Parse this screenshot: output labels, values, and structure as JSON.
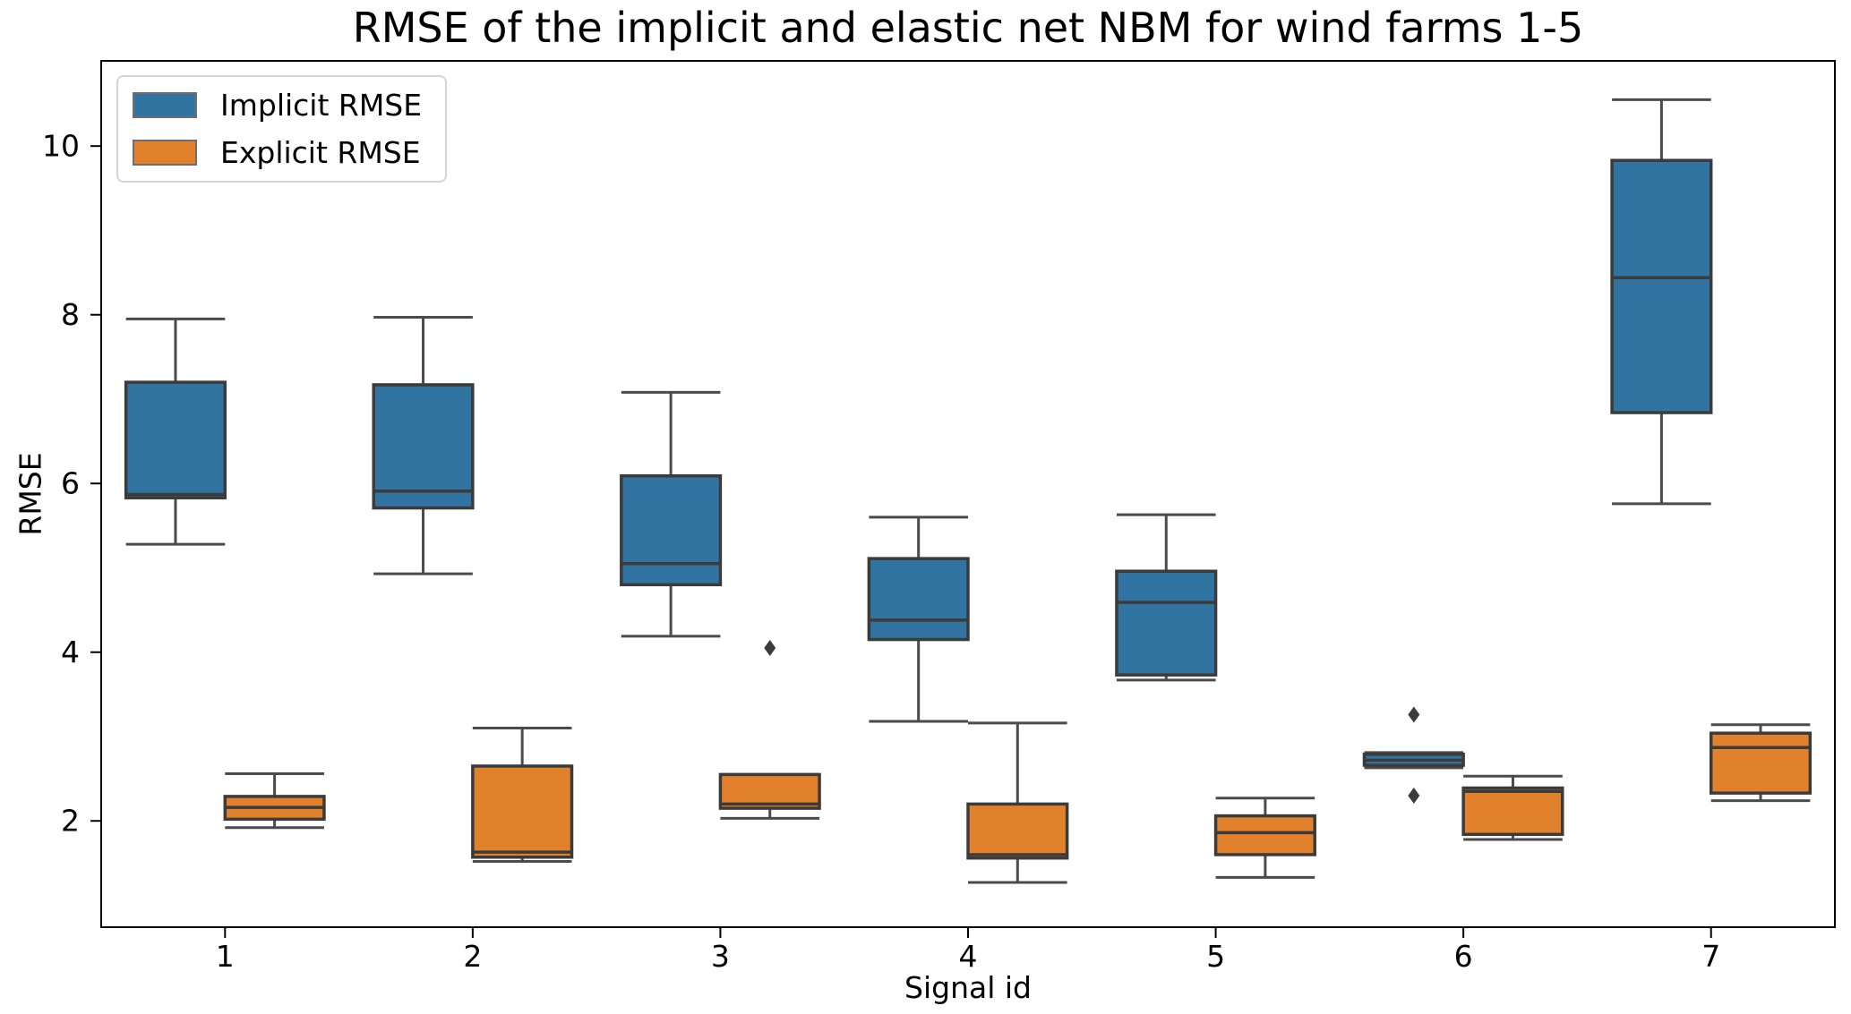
{
  "title": "RMSE of the implicit and elastic net NBM for wind farms 1-5",
  "chart_data": {
    "type": "boxplot",
    "title": "RMSE of the implicit and elastic net NBM for wind farms 1-5",
    "xlabel": "Signal id",
    "ylabel": "RMSE",
    "categories": [
      "1",
      "2",
      "3",
      "4",
      "5",
      "6",
      "7"
    ],
    "y_ticks": [
      2,
      4,
      6,
      8,
      10
    ],
    "ylim": [
      0.74,
      11.01
    ],
    "xlim_category_units": [
      0.5,
      7.5
    ],
    "grid": false,
    "legend_position": "upper left",
    "series": [
      {
        "name": "Implicit RMSE",
        "color": "#3274a1",
        "boxes": [
          {
            "whislo": 5.28,
            "q1": 5.83,
            "med": 5.87,
            "q3": 7.2,
            "whishi": 7.95,
            "outliers": []
          },
          {
            "whislo": 4.93,
            "q1": 5.71,
            "med": 5.91,
            "q3": 7.17,
            "whishi": 7.97,
            "outliers": []
          },
          {
            "whislo": 4.19,
            "q1": 4.8,
            "med": 5.05,
            "q3": 6.09,
            "whishi": 7.08,
            "outliers": []
          },
          {
            "whislo": 3.18,
            "q1": 4.15,
            "med": 4.38,
            "q3": 5.11,
            "whishi": 5.6,
            "outliers": []
          },
          {
            "whislo": 3.67,
            "q1": 3.73,
            "med": 4.59,
            "q3": 4.96,
            "whishi": 5.63,
            "outliers": []
          },
          {
            "whislo": 2.63,
            "q1": 2.66,
            "med": 2.72,
            "q3": 2.79,
            "whishi": 2.81,
            "outliers": [
              3.26,
              2.3
            ]
          },
          {
            "whislo": 5.76,
            "q1": 6.84,
            "med": 8.44,
            "q3": 9.83,
            "whishi": 10.55,
            "outliers": []
          }
        ]
      },
      {
        "name": "Explicit RMSE",
        "color": "#e1812c",
        "boxes": [
          {
            "whislo": 1.92,
            "q1": 2.02,
            "med": 2.16,
            "q3": 2.29,
            "whishi": 2.56,
            "outliers": []
          },
          {
            "whislo": 1.52,
            "q1": 1.57,
            "med": 1.63,
            "q3": 2.65,
            "whishi": 3.1,
            "outliers": []
          },
          {
            "whislo": 2.03,
            "q1": 2.15,
            "med": 2.2,
            "q3": 2.55,
            "whishi": 2.55,
            "outliers": [
              4.05
            ]
          },
          {
            "whislo": 1.27,
            "q1": 1.56,
            "med": 1.6,
            "q3": 2.2,
            "whishi": 3.16,
            "outliers": []
          },
          {
            "whislo": 1.33,
            "q1": 1.6,
            "med": 1.86,
            "q3": 2.06,
            "whishi": 2.27,
            "outliers": []
          },
          {
            "whislo": 1.78,
            "q1": 1.84,
            "med": 2.35,
            "q3": 2.39,
            "whishi": 2.53,
            "outliers": []
          },
          {
            "whislo": 2.24,
            "q1": 2.33,
            "med": 2.87,
            "q3": 3.04,
            "whishi": 3.14,
            "outliers": []
          }
        ]
      }
    ]
  },
  "legend": {
    "items": [
      {
        "label": "Implicit RMSE",
        "color": "#3274a1"
      },
      {
        "label": "Explicit RMSE",
        "color": "#e1812c"
      }
    ]
  },
  "style": {
    "box_edge_color": "#3b3b3b",
    "whisker_color": "#4b4b4b",
    "outlier_color": "#3b3b3b",
    "spine_color": "#000000",
    "text_color": "#000000"
  }
}
